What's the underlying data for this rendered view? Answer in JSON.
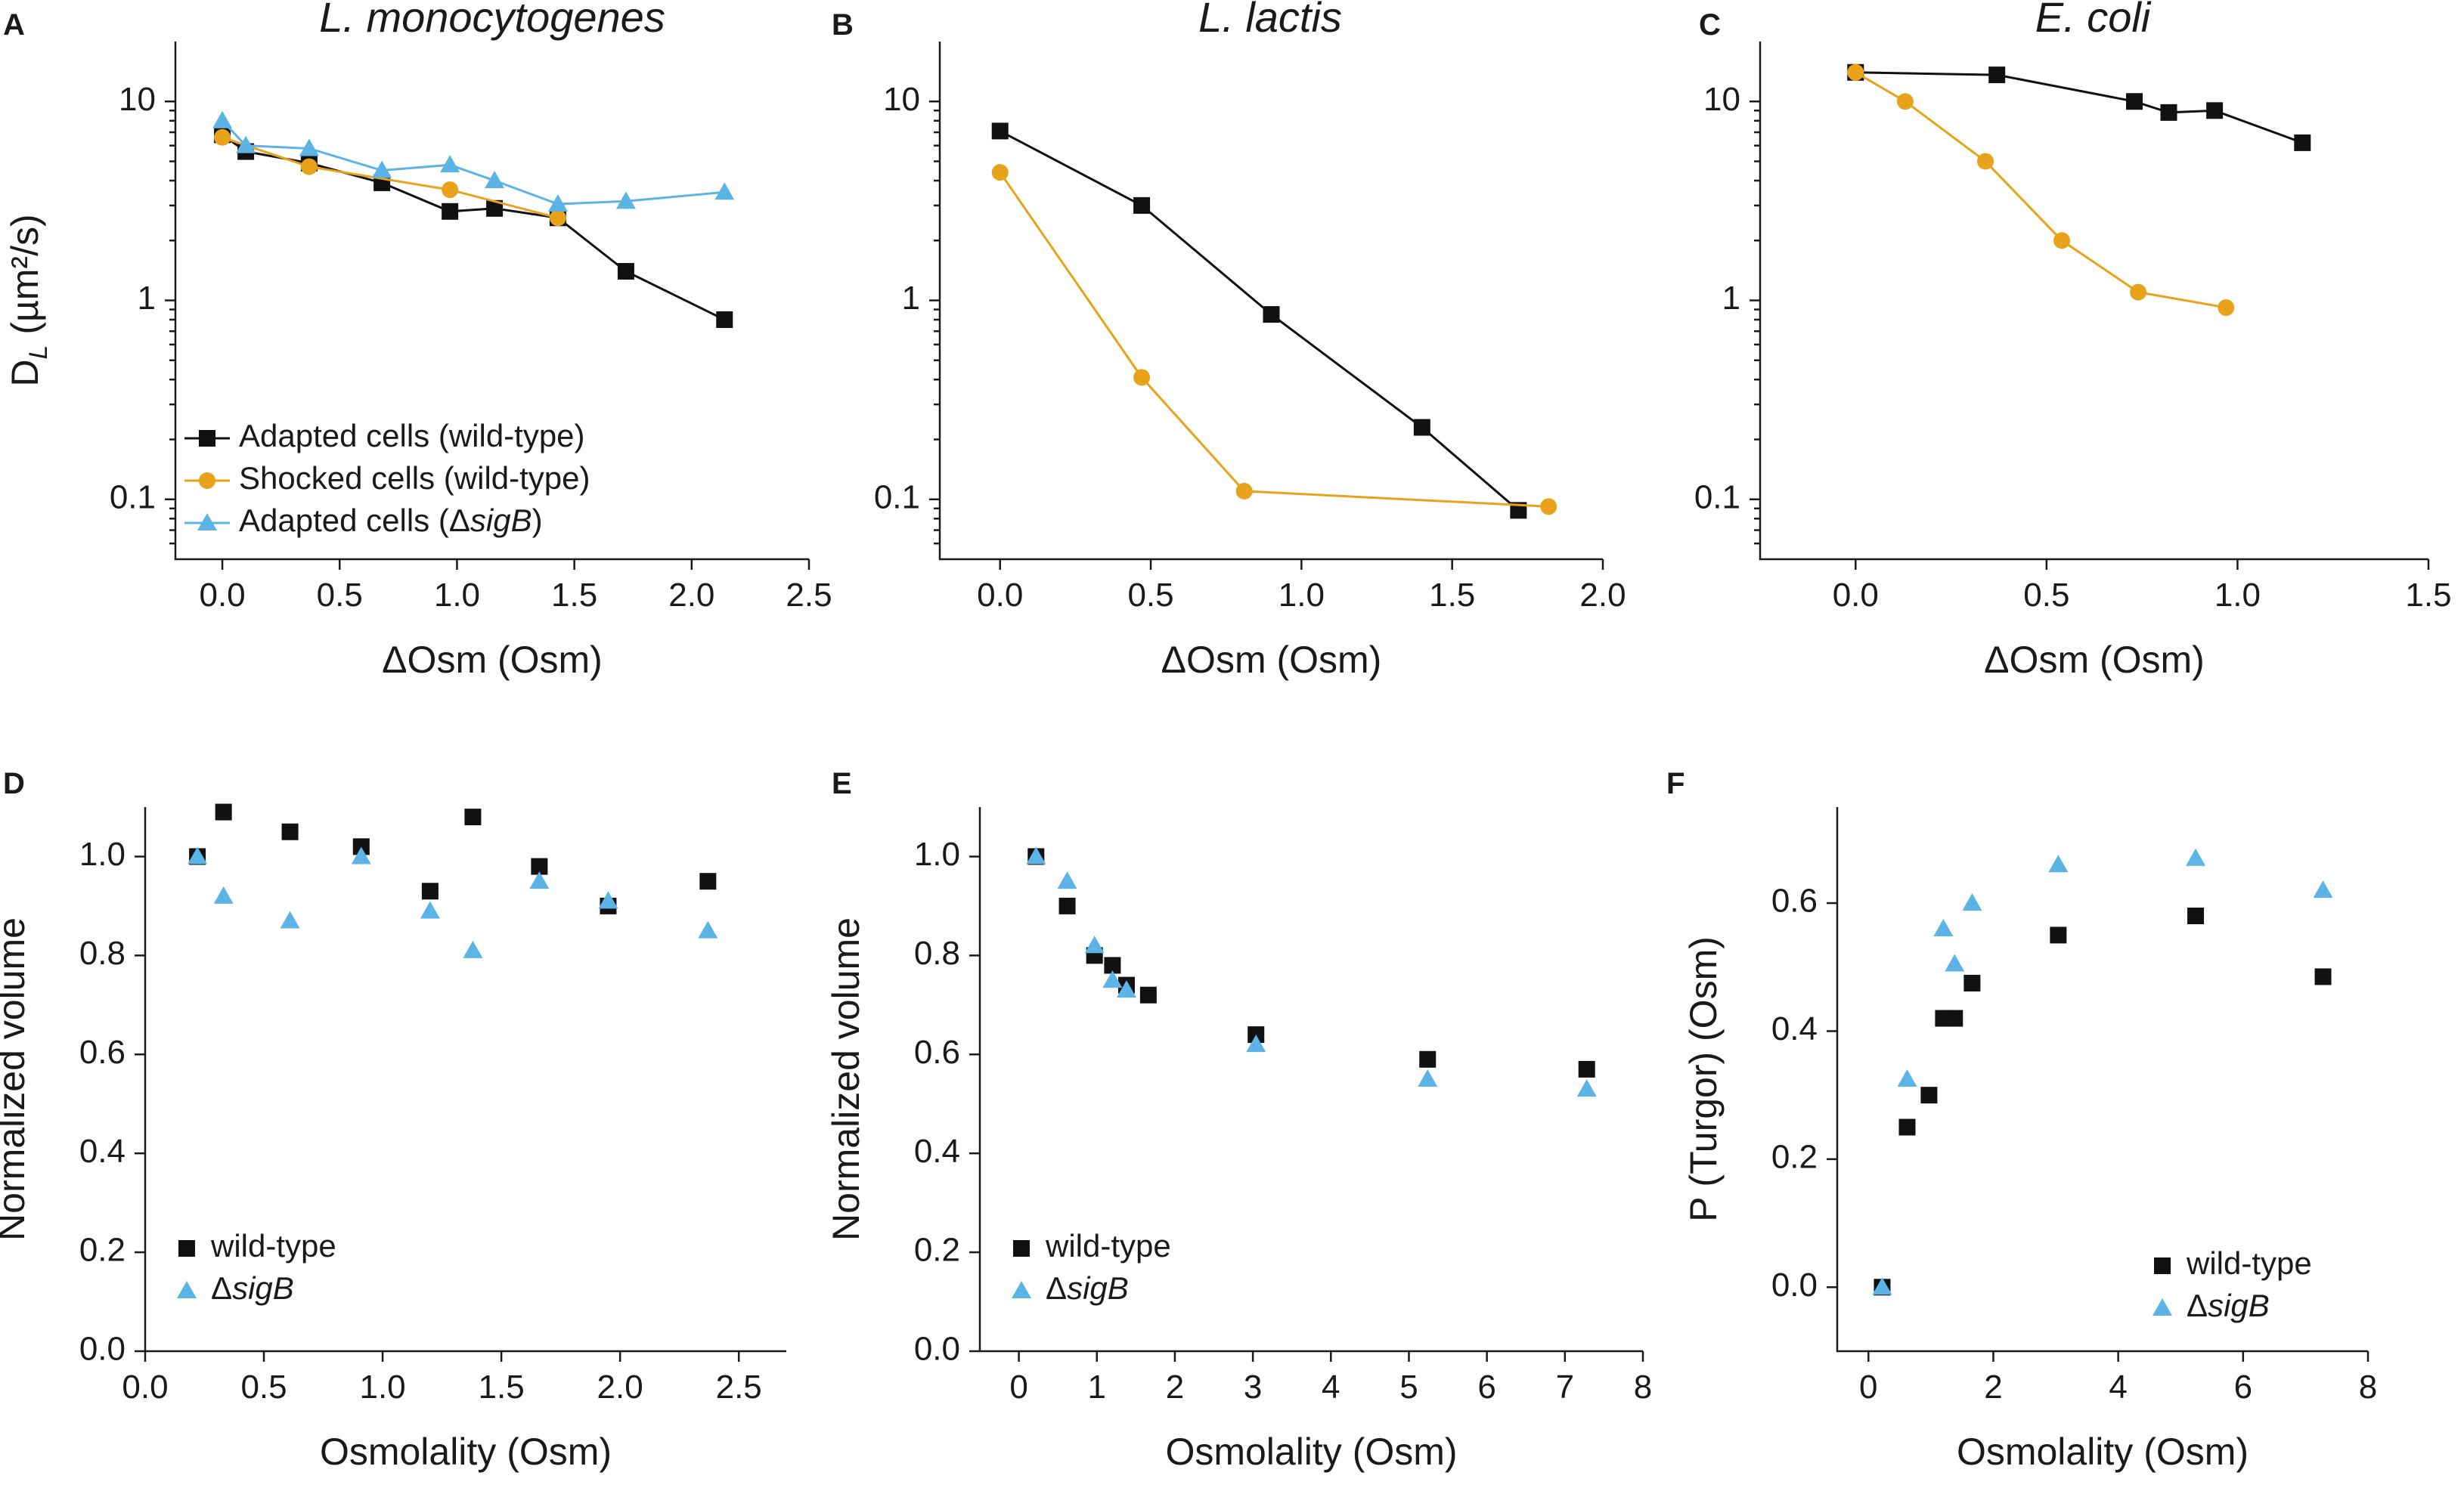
{
  "colors": {
    "black": "#111111",
    "orange": "#E8A31A",
    "blue": "#5BB4E5",
    "axis": "#1a1a1a"
  },
  "chart_data": [
    {
      "id": "A",
      "panel_letter": "A",
      "type": "line",
      "title": "L. monocytogenes",
      "xlabel": "ΔOsm (Osm)",
      "ylabel": "D",
      "ylabel_sub": "L",
      "ylabel_unit": " (µm²/s)",
      "yscale": "log",
      "xlim": [
        -0.2,
        2.5
      ],
      "ylim": [
        0.05,
        20
      ],
      "xticks": [
        0.0,
        0.5,
        1.0,
        1.5,
        2.0,
        2.5
      ],
      "xtick_labels": [
        "0.0",
        "0.5",
        "1.0",
        "1.5",
        "2.0",
        "2.5"
      ],
      "yticks": [
        0.1,
        1,
        10
      ],
      "ytick_labels": [
        "0.1",
        "1",
        "10"
      ],
      "legend_position": "bottom-left",
      "series": [
        {
          "name": "Adapted cells (wild-type)",
          "name_prefix": "Adapted cells (wild-type)",
          "name_italic": "",
          "name_suffix": "",
          "color": "#111111",
          "marker": "square",
          "line": true,
          "x": [
            0.0,
            0.1,
            0.37,
            0.68,
            0.97,
            1.16,
            1.43,
            1.72,
            2.14
          ],
          "y": [
            6.8,
            5.6,
            4.9,
            3.9,
            2.8,
            2.9,
            2.6,
            1.4,
            0.8
          ]
        },
        {
          "name": "Shocked cells (wild-type)",
          "name_prefix": "Shocked cells (wild-type)",
          "name_italic": "",
          "name_suffix": "",
          "color": "#E8A31A",
          "marker": "circle",
          "line": true,
          "x": [
            0.0,
            0.37,
            0.97,
            1.43
          ],
          "y": [
            6.6,
            4.7,
            3.6,
            2.6
          ]
        },
        {
          "name": "Adapted cells (ΔsigB)",
          "name_prefix": "Adapted cells (Δ",
          "name_italic": "sigB",
          "name_suffix": ")",
          "color": "#5BB4E5",
          "marker": "triangle",
          "line": true,
          "x": [
            0.0,
            0.1,
            0.37,
            0.68,
            0.97,
            1.16,
            1.43,
            1.72,
            2.14
          ],
          "y": [
            8.0,
            6.0,
            5.8,
            4.5,
            4.8,
            4.0,
            3.05,
            3.15,
            3.5
          ]
        }
      ]
    },
    {
      "id": "B",
      "panel_letter": "B",
      "type": "line",
      "title": "L. lactis",
      "xlabel": "ΔOsm (Osm)",
      "ylabel": "",
      "yscale": "log",
      "xlim": [
        -0.2,
        2.0
      ],
      "ylim": [
        0.05,
        20
      ],
      "xticks": [
        0.0,
        0.5,
        1.0,
        1.5,
        2.0
      ],
      "xtick_labels": [
        "0.0",
        "0.5",
        "1.0",
        "1.5",
        "2.0"
      ],
      "yticks": [
        0.1,
        1,
        10
      ],
      "ytick_labels": [
        "0.1",
        "1",
        "10"
      ],
      "series": [
        {
          "name": "Adapted cells (wild-type)",
          "color": "#111111",
          "marker": "square",
          "line": true,
          "x": [
            0.0,
            0.47,
            0.9,
            1.4,
            1.72
          ],
          "y": [
            7.1,
            3.0,
            0.85,
            0.23,
            0.088
          ]
        },
        {
          "name": "Shocked cells (wild-type)",
          "color": "#E8A31A",
          "marker": "circle",
          "line": true,
          "x": [
            0.0,
            0.47,
            0.81,
            1.82
          ],
          "y": [
            4.4,
            0.41,
            0.11,
            0.092
          ]
        }
      ]
    },
    {
      "id": "C",
      "panel_letter": "C",
      "type": "line",
      "title": "E. coli",
      "xlabel": "ΔOsm (Osm)",
      "ylabel": "",
      "yscale": "log",
      "xlim": [
        -0.25,
        1.5
      ],
      "ylim": [
        0.05,
        20
      ],
      "xticks": [
        0.0,
        0.5,
        1.0,
        1.5
      ],
      "xtick_labels": [
        "0.0",
        "0.5",
        "1.0",
        "1.5"
      ],
      "yticks": [
        0.1,
        1,
        10
      ],
      "ytick_labels": [
        "0.1",
        "1",
        "10"
      ],
      "series": [
        {
          "name": "Adapted cells (wild-type)",
          "color": "#111111",
          "marker": "square",
          "line": true,
          "x": [
            0.0,
            0.37,
            0.73,
            0.82,
            0.94,
            1.17
          ],
          "y": [
            14.0,
            13.6,
            10.0,
            8.8,
            9.0,
            6.2
          ]
        },
        {
          "name": "Shocked cells (wild-type)",
          "color": "#E8A31A",
          "marker": "circle",
          "line": true,
          "x": [
            0.0,
            0.13,
            0.34,
            0.54,
            0.74,
            0.97
          ],
          "y": [
            14.0,
            10.0,
            5.0,
            2.0,
            1.1,
            0.92
          ]
        }
      ]
    },
    {
      "id": "D",
      "panel_letter": "D",
      "type": "scatter",
      "title": "",
      "xlabel": "Osmolality (Osm)",
      "ylabel": "Normalized volume",
      "yscale": "linear",
      "xlim": [
        0.0,
        2.7
      ],
      "ylim": [
        0.0,
        1.1
      ],
      "xticks": [
        0.0,
        0.5,
        1.0,
        1.5,
        2.0,
        2.5
      ],
      "xtick_labels": [
        "0.0",
        "0.5",
        "1.0",
        "1.5",
        "2.0",
        "2.5"
      ],
      "yticks": [
        0.0,
        0.2,
        0.4,
        0.6,
        0.8,
        1.0
      ],
      "ytick_labels": [
        "0.0",
        "0.2",
        "0.4",
        "0.6",
        "0.8",
        "1.0"
      ],
      "legend_position": "bottom-left",
      "series": [
        {
          "name": "wild-type",
          "name_prefix": "wild-type",
          "name_italic": "",
          "name_suffix": "",
          "color": "#111111",
          "marker": "square",
          "line": false,
          "x": [
            0.22,
            0.33,
            0.61,
            0.91,
            1.2,
            1.38,
            1.66,
            1.95,
            2.37
          ],
          "y": [
            1.0,
            1.09,
            1.05,
            1.02,
            0.93,
            1.08,
            0.98,
            0.9,
            0.95
          ]
        },
        {
          "name": "ΔsigB",
          "name_prefix": "Δ",
          "name_italic": "sigB",
          "name_suffix": "",
          "color": "#5BB4E5",
          "marker": "triangle",
          "line": false,
          "x": [
            0.22,
            0.33,
            0.61,
            0.91,
            1.2,
            1.38,
            1.66,
            1.95,
            2.37
          ],
          "y": [
            1.0,
            0.92,
            0.87,
            1.0,
            0.89,
            0.81,
            0.95,
            0.91,
            0.85
          ]
        }
      ]
    },
    {
      "id": "E",
      "panel_letter": "E",
      "type": "scatter",
      "title": "",
      "xlabel": "Osmolality (Osm)",
      "ylabel": "Normalized volume",
      "yscale": "linear",
      "xlim": [
        -0.5,
        8.0
      ],
      "ylim": [
        0.0,
        1.1
      ],
      "xticks": [
        0,
        1,
        2,
        3,
        4,
        5,
        6,
        7,
        8
      ],
      "xtick_labels": [
        "0",
        "1",
        "2",
        "3",
        "4",
        "5",
        "6",
        "7",
        "8"
      ],
      "yticks": [
        0.0,
        0.2,
        0.4,
        0.6,
        0.8,
        1.0
      ],
      "ytick_labels": [
        "0.0",
        "0.2",
        "0.4",
        "0.6",
        "0.8",
        "1.0"
      ],
      "legend_position": "bottom-left",
      "series": [
        {
          "name": "wild-type",
          "name_prefix": "wild-type",
          "name_italic": "",
          "name_suffix": "",
          "color": "#111111",
          "marker": "square",
          "line": false,
          "x": [
            0.22,
            0.62,
            0.97,
            1.2,
            1.38,
            1.66,
            3.04,
            5.24,
            7.28
          ],
          "y": [
            1.0,
            0.9,
            0.8,
            0.78,
            0.74,
            0.72,
            0.64,
            0.59,
            0.57
          ]
        },
        {
          "name": "ΔsigB",
          "name_prefix": "Δ",
          "name_italic": "sigB",
          "name_suffix": "",
          "color": "#5BB4E5",
          "marker": "triangle",
          "line": false,
          "x": [
            0.22,
            0.62,
            0.97,
            1.2,
            1.38,
            3.04,
            5.24,
            7.28
          ],
          "y": [
            1.0,
            0.95,
            0.82,
            0.75,
            0.73,
            0.62,
            0.55,
            0.53
          ]
        }
      ]
    },
    {
      "id": "F",
      "panel_letter": "F",
      "type": "scatter",
      "title": "",
      "xlabel": "Osmolality (Osm)",
      "ylabel": "P (Turgor) (Osm)",
      "yscale": "linear",
      "xlim": [
        -0.5,
        8.0
      ],
      "ylim": [
        -0.1,
        0.75
      ],
      "xticks": [
        0,
        2,
        4,
        6,
        8
      ],
      "xtick_labels": [
        "0",
        "2",
        "4",
        "6",
        "8"
      ],
      "yticks": [
        0.0,
        0.2,
        0.4,
        0.6
      ],
      "ytick_labels": [
        "0.0",
        "0.2",
        "0.4",
        "0.6"
      ],
      "legend_position": "bottom-right",
      "series": [
        {
          "name": "wild-type",
          "name_prefix": "wild-type",
          "name_italic": "",
          "name_suffix": "",
          "color": "#111111",
          "marker": "square",
          "line": false,
          "x": [
            0.22,
            0.62,
            0.97,
            1.2,
            1.38,
            1.66,
            3.04,
            5.24,
            7.28
          ],
          "y": [
            0.0,
            0.25,
            0.3,
            0.42,
            0.42,
            0.475,
            0.55,
            0.58,
            0.485
          ]
        },
        {
          "name": "ΔsigB",
          "name_prefix": "Δ",
          "name_italic": "sigB",
          "name_suffix": "",
          "color": "#5BB4E5",
          "marker": "triangle",
          "line": false,
          "x": [
            0.22,
            0.62,
            1.2,
            1.38,
            1.66,
            3.04,
            5.24,
            7.28
          ],
          "y": [
            0.0,
            0.325,
            0.56,
            0.505,
            0.6,
            0.66,
            0.67,
            0.62
          ]
        }
      ]
    }
  ]
}
